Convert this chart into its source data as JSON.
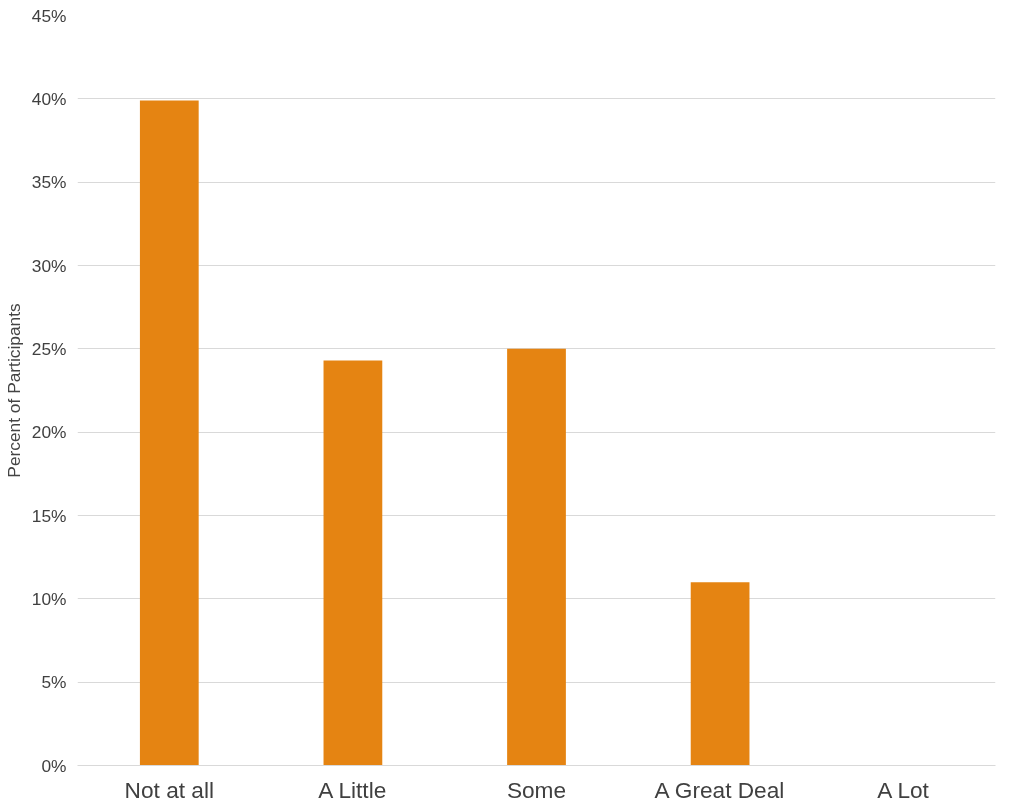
{
  "chart_data": {
    "type": "bar",
    "ylabel": "Percent of Participants",
    "categories": [
      "Not at all",
      "A Little",
      "Some",
      "A Great Deal",
      "A Lot"
    ],
    "values": [
      39.9,
      24.3,
      25.0,
      11.0,
      0
    ],
    "color": "#e58412",
    "ylim": [
      0,
      45
    ],
    "yticks": [
      {
        "value": 0,
        "label": "0%"
      },
      {
        "value": 5,
        "label": "5%"
      },
      {
        "value": 10,
        "label": "10%"
      },
      {
        "value": 15,
        "label": "15%"
      },
      {
        "value": 20,
        "label": "20%"
      },
      {
        "value": 25,
        "label": "25%"
      },
      {
        "value": 30,
        "label": "30%"
      },
      {
        "value": 35,
        "label": "35%"
      },
      {
        "value": 40,
        "label": "40%"
      },
      {
        "value": 45,
        "label": "45%"
      }
    ],
    "grid": "y"
  }
}
